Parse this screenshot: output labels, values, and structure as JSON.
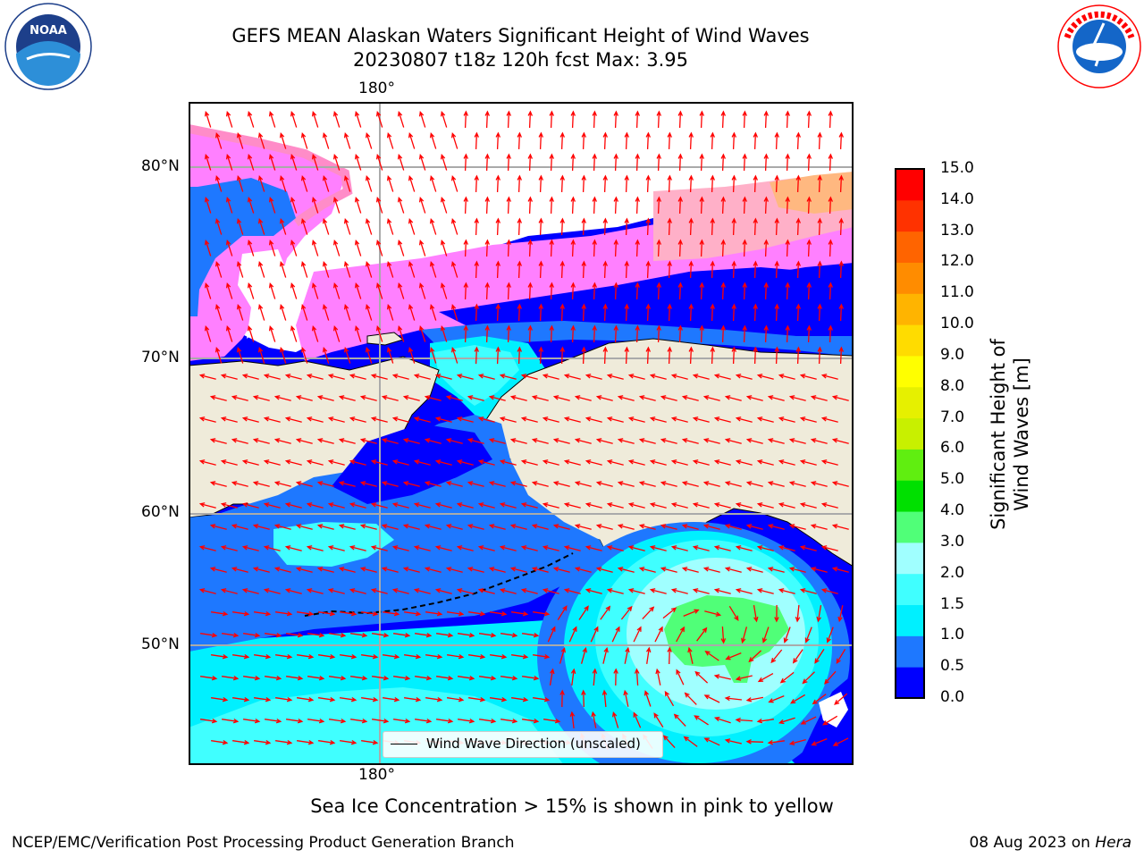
{
  "title": {
    "line1": "GEFS MEAN Alaskan Waters Significant Height of Wind Waves",
    "line2": "20230807 t18z 120h fcst   Max: 3.95"
  },
  "logos": {
    "left": {
      "name": "noaa-logo",
      "text": "NOAA"
    },
    "right": {
      "name": "nws-logo",
      "text": "NATIONAL WEATHER SERVICE"
    }
  },
  "map": {
    "lon_labels": {
      "top": "180°",
      "bottom": "180°"
    },
    "lat_labels": [
      "80°N",
      "70°N",
      "60°N",
      "50°N"
    ],
    "legend": "Wind Wave Direction (unscaled)",
    "arrow_color": "#ff0000",
    "land_color": "#efebda",
    "ice_color": "#ff80ff"
  },
  "colorbar": {
    "label": "Significant Height of Wind Waves [m]",
    "ticks": [
      "0.0",
      "0.5",
      "1.0",
      "1.5",
      "2.0",
      "3.0",
      "4.0",
      "5.0",
      "6.0",
      "7.0",
      "8.0",
      "9.0",
      "10.0",
      "11.0",
      "12.0",
      "13.0",
      "14.0",
      "15.0"
    ],
    "colors": [
      "#0000ff",
      "#1e78ff",
      "#00f0ff",
      "#40ffff",
      "#a0ffff",
      "#50ff78",
      "#00e000",
      "#60ee10",
      "#c8f000",
      "#e6f000",
      "#ffff00",
      "#ffdc00",
      "#ffb400",
      "#ff8c00",
      "#ff6400",
      "#ff3200",
      "#ff0000"
    ]
  },
  "notes": {
    "ice": "Sea Ice Concentration > 15% is shown in pink to yellow",
    "footer_left": "NCEP/EMC/Verification Post Processing Product Generation Branch",
    "footer_right_prefix": "08 Aug 2023 on ",
    "footer_right_host": "Hera"
  }
}
